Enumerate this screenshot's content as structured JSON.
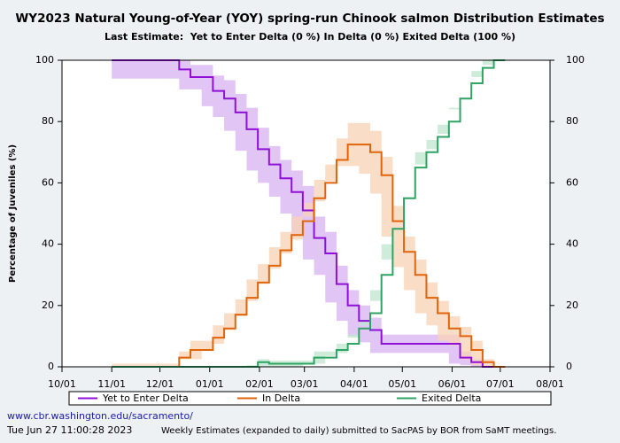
{
  "chart_data": {
    "type": "step-band",
    "title": "WY2023 Natural Young-of-Year (YOY) spring-run Chinook salmon Distribution Estimates",
    "subtitle": "Last Estimate:  Yet to Enter Delta (0 %) In Delta (0 %) Exited Delta (100 %)",
    "y_label": "Percentage of Juveniles (%)",
    "x": [
      31,
      73,
      80,
      87,
      94,
      101,
      108,
      115,
      122,
      129,
      136,
      143,
      150,
      157,
      164,
      171,
      178,
      185,
      192,
      199,
      206,
      213,
      220,
      227,
      234,
      241,
      248,
      255,
      262,
      269,
      276
    ],
    "xlim": [
      0,
      304
    ],
    "xticks": [
      {
        "value": 0,
        "label": "10/01"
      },
      {
        "value": 31,
        "label": "11/01"
      },
      {
        "value": 61,
        "label": "12/01"
      },
      {
        "value": 92,
        "label": "01/01"
      },
      {
        "value": 123,
        "label": "02/01"
      },
      {
        "value": 151,
        "label": "03/01"
      },
      {
        "value": 182,
        "label": "04/01"
      },
      {
        "value": 212,
        "label": "05/01"
      },
      {
        "value": 243,
        "label": "06/01"
      },
      {
        "value": 273,
        "label": "07/01"
      },
      {
        "value": 304,
        "label": "08/01"
      }
    ],
    "ylim": [
      0,
      100
    ],
    "yticks": [
      0,
      20,
      40,
      60,
      80,
      100
    ],
    "y2lim": [
      0,
      100
    ],
    "y2ticks": [
      0,
      20,
      40,
      60,
      80,
      100
    ],
    "legend": "bottom",
    "series": [
      {
        "name": "Yet to Enter Delta",
        "color": "#9010d8",
        "band_color": "#d7b3f2",
        "values": [
          100,
          97,
          94.5,
          94.5,
          90,
          87.5,
          83,
          77.5,
          71,
          66,
          61.5,
          57,
          51,
          42,
          37,
          27,
          20,
          15,
          12,
          7.5,
          7.5,
          7.5,
          7.5,
          7.5,
          7.5,
          7.5,
          3,
          1.5,
          0,
          0,
          0
        ],
        "upper": [
          100,
          100,
          98.5,
          98.5,
          95,
          93.5,
          89,
          84.5,
          78,
          72,
          67.5,
          64,
          59,
          49,
          44,
          33,
          25,
          20,
          16,
          10.5,
          10.5,
          10.5,
          10.5,
          10.5,
          10.5,
          10.5,
          5,
          2.5,
          0,
          0,
          0
        ],
        "lower": [
          100,
          94,
          90.5,
          90.5,
          85,
          81.5,
          77,
          70.5,
          64,
          60,
          55.5,
          50,
          43,
          35,
          30,
          21,
          15,
          10,
          8,
          4.5,
          4.5,
          4.5,
          4.5,
          4.5,
          4.5,
          4.5,
          1,
          0.5,
          0,
          0,
          0
        ]
      },
      {
        "name": "In Delta",
        "color": "#e0640a",
        "band_color": "#f8d2b4",
        "values": [
          0,
          3,
          5.5,
          5.5,
          9.5,
          12.5,
          17,
          22.5,
          27.5,
          33,
          38,
          43,
          47.5,
          55,
          60,
          67.5,
          72.5,
          72.5,
          70,
          62.5,
          47.5,
          37.5,
          30,
          22.5,
          17.5,
          12.5,
          10,
          5.5,
          1.5,
          0,
          0
        ],
        "upper": [
          0,
          5,
          8.5,
          8.5,
          13.5,
          17.5,
          22,
          28.5,
          33.5,
          39,
          44,
          49,
          53.5,
          61,
          66,
          74.5,
          79.5,
          79.5,
          77,
          68.5,
          52.5,
          42.5,
          35,
          27.5,
          21.5,
          16.5,
          13,
          8.5,
          2.5,
          0,
          0
        ],
        "lower": [
          0,
          1,
          2.5,
          2.5,
          5.5,
          7.5,
          12,
          16.5,
          21.5,
          27,
          32,
          37,
          41.5,
          49,
          54,
          60.5,
          65.5,
          65.5,
          63,
          56.5,
          42.5,
          32.5,
          25,
          17.5,
          13.5,
          8.5,
          7,
          2.5,
          0.5,
          0,
          0
        ]
      },
      {
        "name": "Exited Delta",
        "color": "#2ea463",
        "band_color": "#bfe6cd",
        "values": [
          0,
          0,
          0,
          0,
          0,
          0,
          0,
          0,
          1.5,
          1,
          1,
          1,
          1,
          3,
          3,
          5.5,
          7.5,
          12.5,
          17.5,
          30,
          45,
          55,
          65,
          70,
          75,
          80,
          87.5,
          92.5,
          97.5,
          100,
          100
        ],
        "upper": [
          0,
          0,
          0,
          0,
          0,
          0,
          0,
          0,
          2.5,
          2,
          2,
          2,
          2,
          5,
          5,
          7.5,
          10.5,
          15.5,
          21.5,
          35,
          50,
          60,
          70,
          74,
          79,
          84,
          90.5,
          94.5,
          98.5,
          100,
          100
        ],
        "lower": [
          0,
          0,
          0,
          0,
          0,
          0,
          0,
          0,
          0.5,
          0,
          0,
          0,
          0,
          1,
          1,
          3.5,
          4.5,
          9.5,
          13.5,
          25,
          40,
          50,
          60,
          66,
          71,
          76,
          84.5,
          90.5,
          96.5,
          100,
          100
        ]
      }
    ],
    "footer_url": "www.cbr.washington.edu/sacramento/",
    "footer_date": "Tue Jun 27 11:00:28 2023",
    "footer_note": "Weekly Estimates (expanded to daily) submitted to SacPAS by BOR from SaMT meetings."
  }
}
